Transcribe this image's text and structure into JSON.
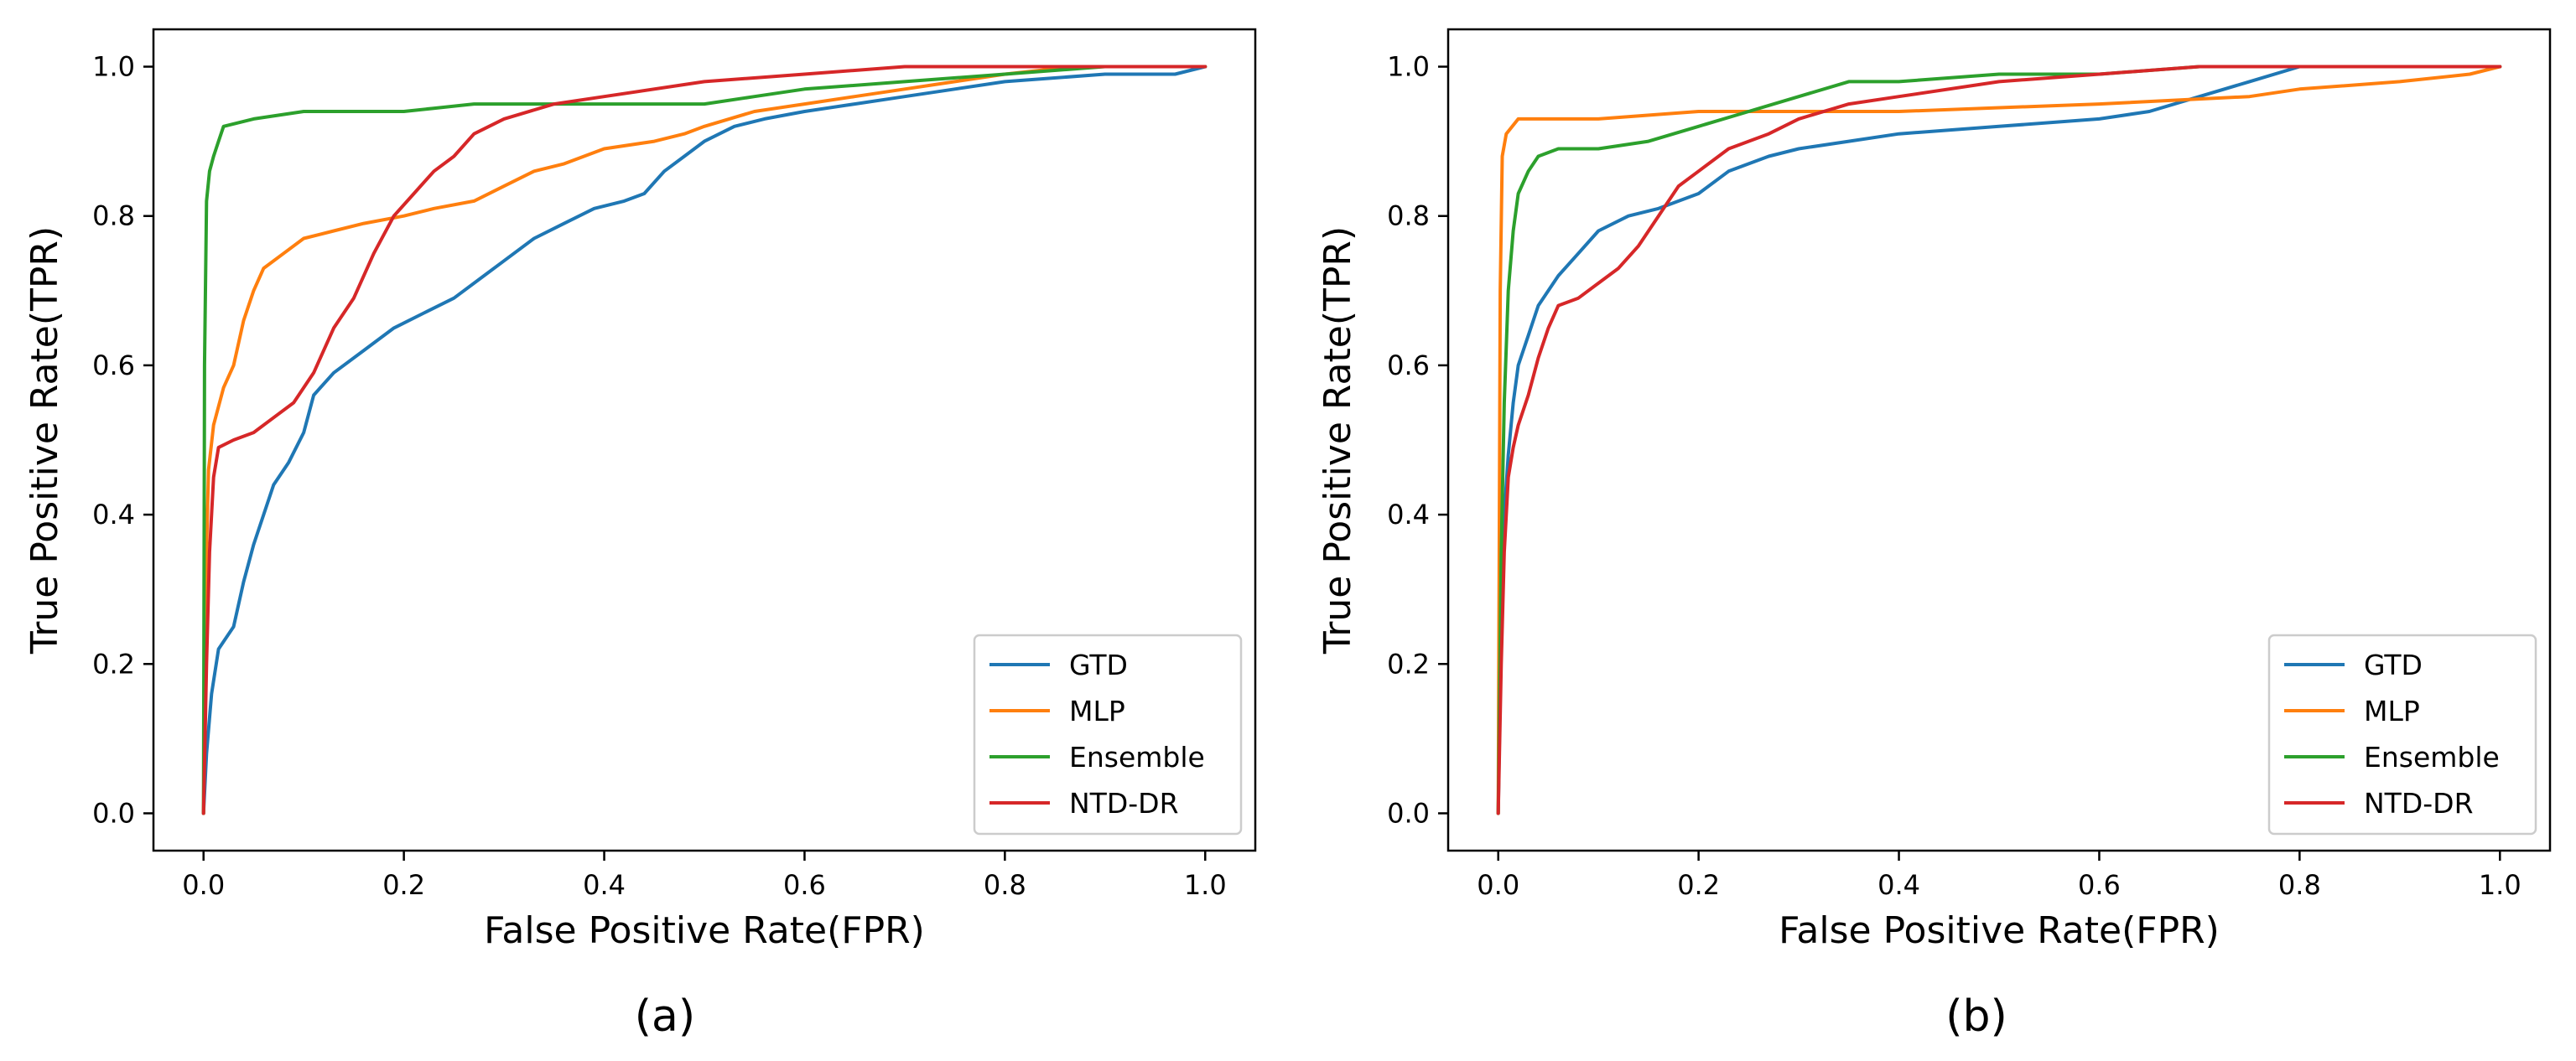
{
  "chart_data": [
    {
      "type": "line",
      "panel_label": "(a)",
      "xlabel": "False Positive Rate(FPR)",
      "ylabel": "True Positive Rate(TPR)",
      "xlim": [
        -0.05,
        1.05
      ],
      "ylim": [
        -0.05,
        1.05
      ],
      "xticks": [
        "0.0",
        "0.2",
        "0.4",
        "0.6",
        "0.8",
        "1.0"
      ],
      "yticks": [
        "0.0",
        "0.2",
        "0.4",
        "0.6",
        "0.8",
        "1.0"
      ],
      "legend_position": "lower-right",
      "grid": false,
      "series": [
        {
          "name": "GTD",
          "color": "#1f77b4",
          "points": [
            [
              0,
              0
            ],
            [
              0.003,
              0.08
            ],
            [
              0.008,
              0.16
            ],
            [
              0.015,
              0.22
            ],
            [
              0.03,
              0.25
            ],
            [
              0.04,
              0.31
            ],
            [
              0.05,
              0.36
            ],
            [
              0.06,
              0.4
            ],
            [
              0.07,
              0.44
            ],
            [
              0.085,
              0.47
            ],
            [
              0.1,
              0.51
            ],
            [
              0.11,
              0.56
            ],
            [
              0.13,
              0.59
            ],
            [
              0.16,
              0.62
            ],
            [
              0.19,
              0.65
            ],
            [
              0.22,
              0.67
            ],
            [
              0.25,
              0.69
            ],
            [
              0.28,
              0.72
            ],
            [
              0.3,
              0.74
            ],
            [
              0.33,
              0.77
            ],
            [
              0.36,
              0.79
            ],
            [
              0.39,
              0.81
            ],
            [
              0.42,
              0.82
            ],
            [
              0.44,
              0.83
            ],
            [
              0.46,
              0.86
            ],
            [
              0.48,
              0.88
            ],
            [
              0.5,
              0.9
            ],
            [
              0.53,
              0.92
            ],
            [
              0.56,
              0.93
            ],
            [
              0.6,
              0.94
            ],
            [
              0.65,
              0.95
            ],
            [
              0.7,
              0.96
            ],
            [
              0.75,
              0.97
            ],
            [
              0.8,
              0.98
            ],
            [
              0.9,
              0.99
            ],
            [
              0.97,
              0.99
            ],
            [
              1,
              1
            ]
          ]
        },
        {
          "name": "MLP",
          "color": "#ff7f0e",
          "points": [
            [
              0,
              0
            ],
            [
              0.002,
              0.3
            ],
            [
              0.005,
              0.46
            ],
            [
              0.01,
              0.52
            ],
            [
              0.02,
              0.57
            ],
            [
              0.03,
              0.6
            ],
            [
              0.04,
              0.66
            ],
            [
              0.05,
              0.7
            ],
            [
              0.06,
              0.73
            ],
            [
              0.08,
              0.75
            ],
            [
              0.1,
              0.77
            ],
            [
              0.13,
              0.78
            ],
            [
              0.16,
              0.79
            ],
            [
              0.2,
              0.8
            ],
            [
              0.23,
              0.81
            ],
            [
              0.27,
              0.82
            ],
            [
              0.3,
              0.84
            ],
            [
              0.33,
              0.86
            ],
            [
              0.36,
              0.87
            ],
            [
              0.4,
              0.89
            ],
            [
              0.45,
              0.9
            ],
            [
              0.48,
              0.91
            ],
            [
              0.5,
              0.92
            ],
            [
              0.55,
              0.94
            ],
            [
              0.6,
              0.95
            ],
            [
              0.65,
              0.96
            ],
            [
              0.7,
              0.97
            ],
            [
              0.75,
              0.98
            ],
            [
              0.8,
              0.99
            ],
            [
              0.87,
              1.0
            ],
            [
              1,
              1
            ]
          ]
        },
        {
          "name": "Ensemble",
          "color": "#2ca02c",
          "points": [
            [
              0,
              0
            ],
            [
              0.001,
              0.6
            ],
            [
              0.003,
              0.82
            ],
            [
              0.006,
              0.86
            ],
            [
              0.01,
              0.88
            ],
            [
              0.015,
              0.9
            ],
            [
              0.02,
              0.92
            ],
            [
              0.05,
              0.93
            ],
            [
              0.1,
              0.94
            ],
            [
              0.2,
              0.94
            ],
            [
              0.27,
              0.95
            ],
            [
              0.5,
              0.95
            ],
            [
              0.55,
              0.96
            ],
            [
              0.6,
              0.97
            ],
            [
              0.7,
              0.98
            ],
            [
              0.8,
              0.99
            ],
            [
              0.9,
              1.0
            ],
            [
              1,
              1
            ]
          ]
        },
        {
          "name": "NTD-DR",
          "color": "#d62728",
          "points": [
            [
              0,
              0
            ],
            [
              0.003,
              0.2
            ],
            [
              0.006,
              0.35
            ],
            [
              0.01,
              0.45
            ],
            [
              0.015,
              0.49
            ],
            [
              0.03,
              0.5
            ],
            [
              0.05,
              0.51
            ],
            [
              0.07,
              0.53
            ],
            [
              0.09,
              0.55
            ],
            [
              0.11,
              0.59
            ],
            [
              0.13,
              0.65
            ],
            [
              0.15,
              0.69
            ],
            [
              0.17,
              0.75
            ],
            [
              0.19,
              0.8
            ],
            [
              0.21,
              0.83
            ],
            [
              0.23,
              0.86
            ],
            [
              0.25,
              0.88
            ],
            [
              0.27,
              0.91
            ],
            [
              0.3,
              0.93
            ],
            [
              0.35,
              0.95
            ],
            [
              0.4,
              0.96
            ],
            [
              0.5,
              0.98
            ],
            [
              0.6,
              0.99
            ],
            [
              0.7,
              1.0
            ],
            [
              1,
              1
            ]
          ]
        }
      ]
    },
    {
      "type": "line",
      "panel_label": "(b)",
      "xlabel": "False Positive Rate(FPR)",
      "ylabel": "True Positive Rate(TPR)",
      "xlim": [
        -0.05,
        1.05
      ],
      "ylim": [
        -0.05,
        1.05
      ],
      "xticks": [
        "0.0",
        "0.2",
        "0.4",
        "0.6",
        "0.8",
        "1.0"
      ],
      "yticks": [
        "0.0",
        "0.2",
        "0.4",
        "0.6",
        "0.8",
        "1.0"
      ],
      "legend_position": "lower-right",
      "grid": false,
      "series": [
        {
          "name": "GTD",
          "color": "#1f77b4",
          "points": [
            [
              0,
              0
            ],
            [
              0.003,
              0.25
            ],
            [
              0.006,
              0.4
            ],
            [
              0.01,
              0.48
            ],
            [
              0.015,
              0.55
            ],
            [
              0.02,
              0.6
            ],
            [
              0.03,
              0.64
            ],
            [
              0.04,
              0.68
            ],
            [
              0.06,
              0.72
            ],
            [
              0.08,
              0.75
            ],
            [
              0.1,
              0.78
            ],
            [
              0.13,
              0.8
            ],
            [
              0.16,
              0.81
            ],
            [
              0.2,
              0.83
            ],
            [
              0.23,
              0.86
            ],
            [
              0.27,
              0.88
            ],
            [
              0.3,
              0.89
            ],
            [
              0.35,
              0.9
            ],
            [
              0.4,
              0.91
            ],
            [
              0.5,
              0.92
            ],
            [
              0.6,
              0.93
            ],
            [
              0.65,
              0.94
            ],
            [
              0.7,
              0.96
            ],
            [
              0.75,
              0.98
            ],
            [
              0.8,
              1.0
            ],
            [
              1,
              1
            ]
          ]
        },
        {
          "name": "MLP",
          "color": "#ff7f0e",
          "points": [
            [
              0,
              0
            ],
            [
              0.002,
              0.7
            ],
            [
              0.004,
              0.88
            ],
            [
              0.008,
              0.91
            ],
            [
              0.02,
              0.93
            ],
            [
              0.1,
              0.93
            ],
            [
              0.2,
              0.94
            ],
            [
              0.4,
              0.94
            ],
            [
              0.6,
              0.95
            ],
            [
              0.75,
              0.96
            ],
            [
              0.8,
              0.97
            ],
            [
              0.9,
              0.98
            ],
            [
              0.97,
              0.99
            ],
            [
              1,
              1
            ]
          ]
        },
        {
          "name": "Ensemble",
          "color": "#2ca02c",
          "points": [
            [
              0,
              0
            ],
            [
              0.003,
              0.35
            ],
            [
              0.006,
              0.55
            ],
            [
              0.01,
              0.7
            ],
            [
              0.015,
              0.78
            ],
            [
              0.02,
              0.83
            ],
            [
              0.03,
              0.86
            ],
            [
              0.04,
              0.88
            ],
            [
              0.06,
              0.89
            ],
            [
              0.1,
              0.89
            ],
            [
              0.15,
              0.9
            ],
            [
              0.2,
              0.92
            ],
            [
              0.25,
              0.94
            ],
            [
              0.3,
              0.96
            ],
            [
              0.35,
              0.98
            ],
            [
              0.4,
              0.98
            ],
            [
              0.5,
              0.99
            ],
            [
              0.6,
              0.99
            ],
            [
              0.7,
              1.0
            ],
            [
              1,
              1
            ]
          ]
        },
        {
          "name": "NTD-DR",
          "color": "#d62728",
          "points": [
            [
              0,
              0
            ],
            [
              0.003,
              0.2
            ],
            [
              0.006,
              0.35
            ],
            [
              0.01,
              0.45
            ],
            [
              0.015,
              0.49
            ],
            [
              0.02,
              0.52
            ],
            [
              0.03,
              0.56
            ],
            [
              0.04,
              0.61
            ],
            [
              0.05,
              0.65
            ],
            [
              0.06,
              0.68
            ],
            [
              0.08,
              0.69
            ],
            [
              0.1,
              0.71
            ],
            [
              0.12,
              0.73
            ],
            [
              0.14,
              0.76
            ],
            [
              0.16,
              0.8
            ],
            [
              0.18,
              0.84
            ],
            [
              0.2,
              0.86
            ],
            [
              0.23,
              0.89
            ],
            [
              0.27,
              0.91
            ],
            [
              0.3,
              0.93
            ],
            [
              0.35,
              0.95
            ],
            [
              0.4,
              0.96
            ],
            [
              0.5,
              0.98
            ],
            [
              0.6,
              0.99
            ],
            [
              0.7,
              1.0
            ],
            [
              1,
              1
            ]
          ]
        }
      ]
    }
  ]
}
